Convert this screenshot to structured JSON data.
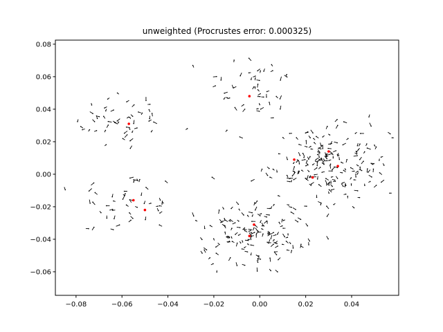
{
  "chart_data": {
    "type": "scatter",
    "title": "unweighted (Procrustes error: 0.000325)",
    "xlabel": "",
    "ylabel": "",
    "xlim": [
      -0.089,
      0.0605
    ],
    "ylim": [
      -0.0745,
      0.0825
    ],
    "grid": false,
    "x_ticks": [
      {
        "value": -0.08,
        "label": "−0.08"
      },
      {
        "value": -0.06,
        "label": "−0.06"
      },
      {
        "value": -0.04,
        "label": "−0.04"
      },
      {
        "value": -0.02,
        "label": "−0.02"
      },
      {
        "value": 0.0,
        "label": "0.00"
      },
      {
        "value": 0.02,
        "label": "0.02"
      },
      {
        "value": 0.04,
        "label": "0.04"
      }
    ],
    "y_ticks": [
      {
        "value": -0.06,
        "label": "−0.06"
      },
      {
        "value": -0.04,
        "label": "−0.04"
      },
      {
        "value": -0.02,
        "label": "−0.02"
      },
      {
        "value": 0.0,
        "label": "0.00"
      },
      {
        "value": 0.02,
        "label": "0.02"
      },
      {
        "value": 0.04,
        "label": "0.04"
      },
      {
        "value": 0.06,
        "label": "0.06"
      },
      {
        "value": 0.08,
        "label": "0.08"
      }
    ],
    "series": [
      {
        "color": "#ff0000",
        "marker": "dot",
        "points": [
          {
            "x": -0.057,
            "y": 0.031
          },
          {
            "x": -0.0045,
            "y": 0.048
          },
          {
            "x": -0.055,
            "y": -0.016
          },
          {
            "x": -0.05,
            "y": -0.022
          },
          {
            "x": -0.0025,
            "y": -0.031
          },
          {
            "x": -0.0045,
            "y": -0.038
          },
          {
            "x": 0.015,
            "y": 0.009
          },
          {
            "x": 0.023,
            "y": -0.002
          },
          {
            "x": 0.03,
            "y": 0.014
          },
          {
            "x": 0.034,
            "y": 0.005
          }
        ]
      },
      {
        "color": "#000000",
        "marker": "quiver",
        "clusters": [
          {
            "cx": -0.06,
            "cy": 0.034,
            "sx": 0.01,
            "sy": 0.009,
            "n": 50
          },
          {
            "cx": -0.003,
            "cy": 0.052,
            "sx": 0.01,
            "sy": 0.012,
            "n": 48
          },
          {
            "cx": -0.058,
            "cy": -0.018,
            "sx": 0.011,
            "sy": 0.01,
            "n": 48
          },
          {
            "cx": 0.03,
            "cy": 0.006,
            "sx": 0.013,
            "sy": 0.011,
            "n": 200
          },
          {
            "cx": -0.003,
            "cy": -0.036,
            "sx": 0.011,
            "sy": 0.011,
            "n": 150
          }
        ]
      }
    ]
  }
}
